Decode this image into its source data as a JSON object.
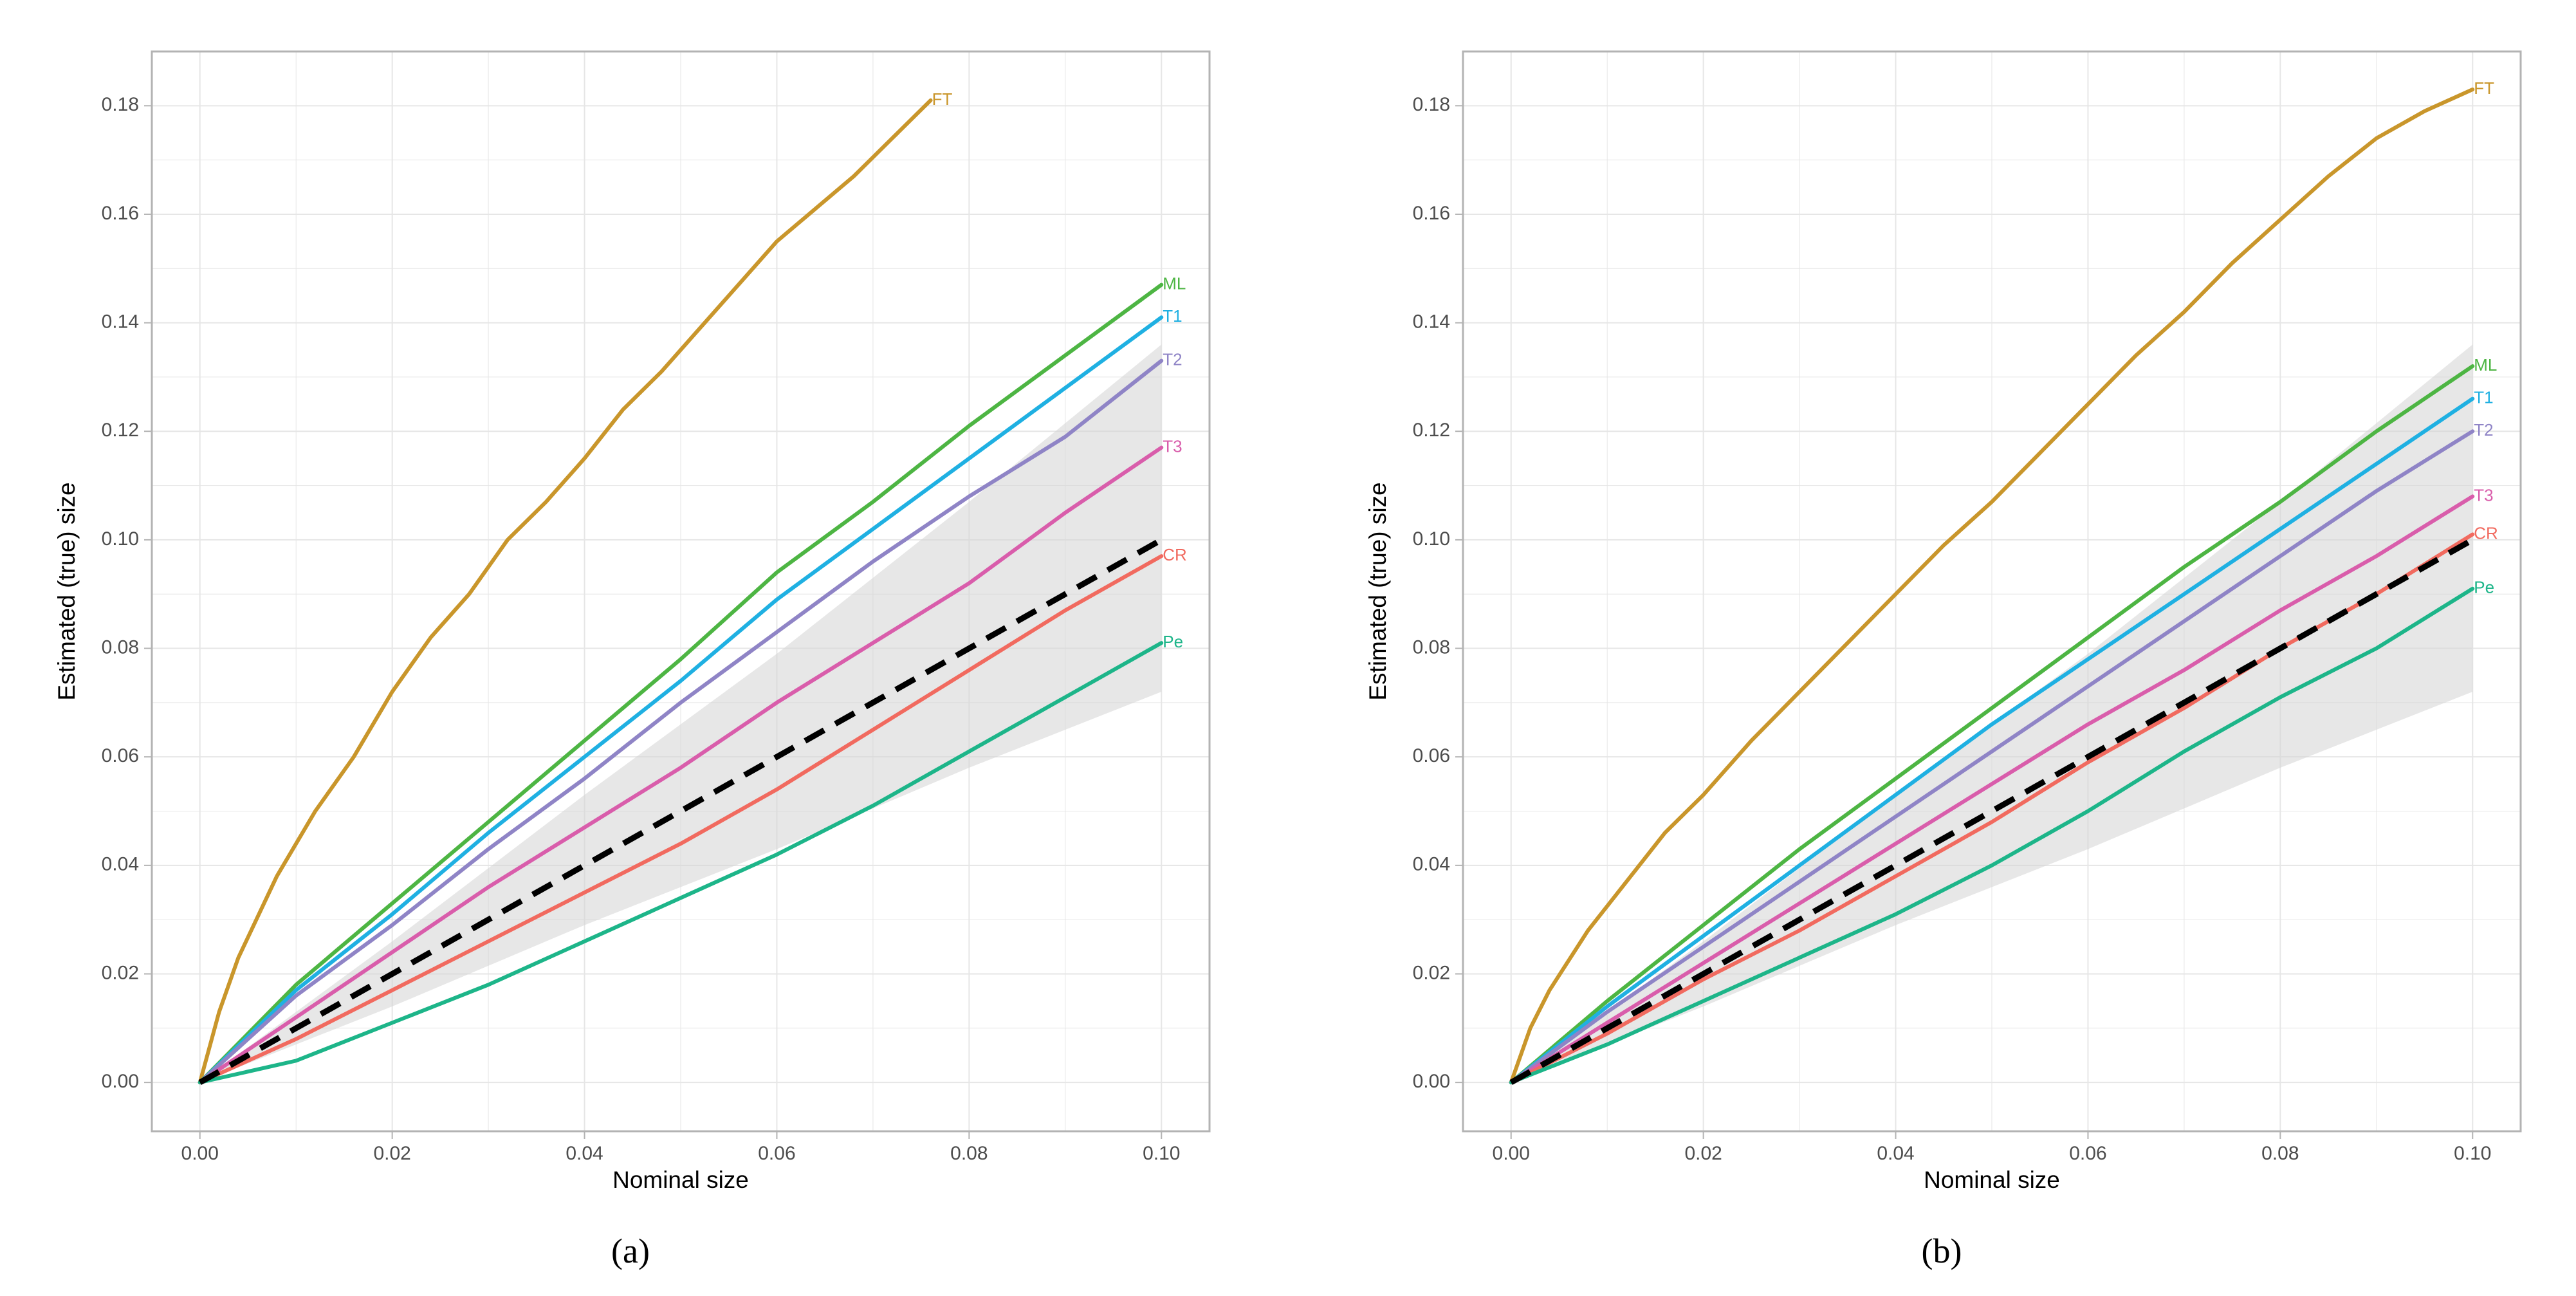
{
  "colors": {
    "FT": "#C9962B",
    "ML": "#4DB543",
    "T1": "#1FB0E2",
    "T2": "#8F84C6",
    "T3": "#D95DAB",
    "CR": "#F16A5F",
    "Pe": "#1DB589",
    "diagonal": "#000000",
    "band": "#D3D3D3",
    "grid": "#E6E6E6",
    "panel_border": "#B3B3B3",
    "tick_text": "#4D4D4D",
    "axis_title": "#000000"
  },
  "chart_data": [
    {
      "type": "line",
      "panel_label": "(a)",
      "xlabel": "Nominal size",
      "ylabel": "Estimated (true) size",
      "xlim": [
        -0.005,
        0.105
      ],
      "ylim": [
        -0.009,
        0.19
      ],
      "xticks": [
        "0.00",
        "0.02",
        "0.04",
        "0.06",
        "0.08",
        "0.10"
      ],
      "yticks": [
        "0.00",
        "0.02",
        "0.04",
        "0.06",
        "0.08",
        "0.10",
        "0.12",
        "0.14",
        "0.16",
        "0.18"
      ],
      "grid": true,
      "band": {
        "x": [
          0,
          0.02,
          0.04,
          0.06,
          0.08,
          0.1
        ],
        "lower": [
          0,
          0.014,
          0.029,
          0.043,
          0.058,
          0.072
        ],
        "upper": [
          0,
          0.026,
          0.053,
          0.079,
          0.107,
          0.136
        ]
      },
      "reference": {
        "name": "nominal",
        "style": "dashed",
        "x": [
          0,
          0.1
        ],
        "y": [
          0,
          0.1
        ]
      },
      "series": [
        {
          "name": "FT",
          "x": [
            0,
            0.002,
            0.004,
            0.008,
            0.012,
            0.016,
            0.02,
            0.024,
            0.028,
            0.032,
            0.036,
            0.04,
            0.044,
            0.048,
            0.052,
            0.056,
            0.06,
            0.064,
            0.068,
            0.072,
            0.076
          ],
          "y": [
            0,
            0.013,
            0.023,
            0.038,
            0.05,
            0.06,
            0.072,
            0.082,
            0.09,
            0.1,
            0.107,
            0.115,
            0.124,
            0.131,
            0.139,
            0.147,
            0.155,
            0.161,
            0.167,
            0.174,
            0.181
          ]
        },
        {
          "name": "ML",
          "x": [
            0,
            0.01,
            0.02,
            0.03,
            0.04,
            0.05,
            0.06,
            0.07,
            0.08,
            0.09,
            0.1
          ],
          "y": [
            0,
            0.018,
            0.033,
            0.048,
            0.063,
            0.078,
            0.094,
            0.107,
            0.121,
            0.134,
            0.147
          ]
        },
        {
          "name": "T1",
          "x": [
            0,
            0.01,
            0.02,
            0.03,
            0.04,
            0.05,
            0.06,
            0.07,
            0.08,
            0.09,
            0.1
          ],
          "y": [
            0,
            0.017,
            0.031,
            0.046,
            0.06,
            0.074,
            0.089,
            0.102,
            0.115,
            0.128,
            0.141
          ]
        },
        {
          "name": "T2",
          "x": [
            0,
            0.01,
            0.02,
            0.03,
            0.04,
            0.05,
            0.06,
            0.07,
            0.08,
            0.09,
            0.1
          ],
          "y": [
            0,
            0.016,
            0.029,
            0.043,
            0.056,
            0.07,
            0.083,
            0.096,
            0.108,
            0.119,
            0.133
          ]
        },
        {
          "name": "T3",
          "x": [
            0,
            0.01,
            0.02,
            0.03,
            0.04,
            0.05,
            0.06,
            0.07,
            0.08,
            0.09,
            0.1
          ],
          "y": [
            0,
            0.012,
            0.024,
            0.036,
            0.047,
            0.058,
            0.07,
            0.081,
            0.092,
            0.105,
            0.117
          ]
        },
        {
          "name": "CR",
          "x": [
            0,
            0.01,
            0.02,
            0.03,
            0.04,
            0.05,
            0.06,
            0.07,
            0.08,
            0.09,
            0.1
          ],
          "y": [
            0,
            0.008,
            0.017,
            0.026,
            0.035,
            0.044,
            0.054,
            0.065,
            0.076,
            0.087,
            0.097
          ]
        },
        {
          "name": "Pe",
          "x": [
            0,
            0.01,
            0.02,
            0.03,
            0.04,
            0.05,
            0.06,
            0.07,
            0.08,
            0.09,
            0.1
          ],
          "y": [
            0,
            0.004,
            0.011,
            0.018,
            0.026,
            0.034,
            0.042,
            0.051,
            0.061,
            0.071,
            0.081
          ]
        }
      ]
    },
    {
      "type": "line",
      "panel_label": "(b)",
      "xlabel": "Nominal size",
      "ylabel": "Estimated (true) size",
      "xlim": [
        -0.005,
        0.105
      ],
      "ylim": [
        -0.009,
        0.19
      ],
      "xticks": [
        "0.00",
        "0.02",
        "0.04",
        "0.06",
        "0.08",
        "0.10"
      ],
      "yticks": [
        "0.00",
        "0.02",
        "0.04",
        "0.06",
        "0.08",
        "0.10",
        "0.12",
        "0.14",
        "0.16",
        "0.18"
      ],
      "grid": true,
      "band": {
        "x": [
          0,
          0.02,
          0.04,
          0.06,
          0.08,
          0.1
        ],
        "lower": [
          0,
          0.014,
          0.029,
          0.043,
          0.058,
          0.072
        ],
        "upper": [
          0,
          0.026,
          0.053,
          0.079,
          0.107,
          0.136
        ]
      },
      "reference": {
        "name": "nominal",
        "style": "dashed",
        "x": [
          0,
          0.1
        ],
        "y": [
          0,
          0.1
        ]
      },
      "series": [
        {
          "name": "FT",
          "x": [
            0,
            0.002,
            0.004,
            0.008,
            0.012,
            0.016,
            0.02,
            0.025,
            0.03,
            0.035,
            0.04,
            0.045,
            0.05,
            0.055,
            0.06,
            0.065,
            0.07,
            0.075,
            0.08,
            0.085,
            0.09,
            0.095,
            0.1
          ],
          "y": [
            0,
            0.01,
            0.017,
            0.028,
            0.037,
            0.046,
            0.053,
            0.063,
            0.072,
            0.081,
            0.09,
            0.099,
            0.107,
            0.116,
            0.125,
            0.134,
            0.142,
            0.151,
            0.159,
            0.167,
            0.174,
            0.179,
            0.183
          ]
        },
        {
          "name": "ML",
          "x": [
            0,
            0.01,
            0.02,
            0.03,
            0.04,
            0.05,
            0.06,
            0.07,
            0.08,
            0.09,
            0.1
          ],
          "y": [
            0,
            0.015,
            0.029,
            0.043,
            0.056,
            0.069,
            0.082,
            0.095,
            0.107,
            0.12,
            0.132
          ]
        },
        {
          "name": "T1",
          "x": [
            0,
            0.01,
            0.02,
            0.03,
            0.04,
            0.05,
            0.06,
            0.07,
            0.08,
            0.09,
            0.1
          ],
          "y": [
            0,
            0.014,
            0.027,
            0.04,
            0.053,
            0.066,
            0.078,
            0.09,
            0.102,
            0.114,
            0.126
          ]
        },
        {
          "name": "T2",
          "x": [
            0,
            0.01,
            0.02,
            0.03,
            0.04,
            0.05,
            0.06,
            0.07,
            0.08,
            0.09,
            0.1
          ],
          "y": [
            0,
            0.013,
            0.025,
            0.037,
            0.049,
            0.061,
            0.073,
            0.085,
            0.097,
            0.109,
            0.12
          ]
        },
        {
          "name": "T3",
          "x": [
            0,
            0.01,
            0.02,
            0.03,
            0.04,
            0.05,
            0.06,
            0.07,
            0.08,
            0.09,
            0.1
          ],
          "y": [
            0,
            0.011,
            0.022,
            0.033,
            0.044,
            0.055,
            0.066,
            0.076,
            0.087,
            0.097,
            0.108
          ]
        },
        {
          "name": "CR",
          "x": [
            0,
            0.01,
            0.02,
            0.03,
            0.04,
            0.05,
            0.06,
            0.07,
            0.08,
            0.09,
            0.1
          ],
          "y": [
            0,
            0.009,
            0.019,
            0.028,
            0.038,
            0.048,
            0.059,
            0.069,
            0.08,
            0.09,
            0.101
          ]
        },
        {
          "name": "Pe",
          "x": [
            0,
            0.01,
            0.02,
            0.03,
            0.04,
            0.05,
            0.06,
            0.07,
            0.08,
            0.09,
            0.1
          ],
          "y": [
            0,
            0.007,
            0.015,
            0.023,
            0.031,
            0.04,
            0.05,
            0.061,
            0.071,
            0.08,
            0.091
          ]
        }
      ]
    }
  ]
}
